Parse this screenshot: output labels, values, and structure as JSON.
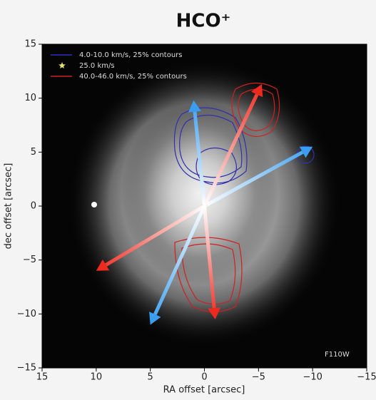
{
  "chart_data": {
    "type": "scatter",
    "title": "HCO⁺",
    "xlabel": "RA offset [arcsec]",
    "ylabel": "dec offset [arcsec]",
    "xlim": [
      15,
      -15
    ],
    "ylim": [
      -15,
      15
    ],
    "xticks": [
      15,
      10,
      5,
      0,
      {
        "value": -5,
        "label": "−5"
      },
      {
        "value": -10,
        "label": "−10"
      },
      {
        "value": -15,
        "label": "−15"
      }
    ],
    "yticks": [
      {
        "value": -15,
        "label": "−15"
      },
      {
        "value": -10,
        "label": "−10"
      },
      {
        "value": -5,
        "label": "−5"
      },
      0,
      5,
      10,
      15
    ],
    "series": [
      {
        "name": "4.0-10.0 km/s, 25% contours",
        "color": "#3a9ef0",
        "x": [
          -10,
          1,
          5
        ],
        "y": [
          5.5,
          9.8,
          -11
        ]
      },
      {
        "name": "25.0 km/s",
        "color": "#e8e070",
        "x": [
          0
        ],
        "y": [
          0
        ]
      },
      {
        "name": "40.0-46.0 km/s, 25% contours",
        "color": "#ee2a1e",
        "x": [
          -5.3,
          10,
          -1
        ],
        "y": [
          11.3,
          -6,
          -10.5
        ]
      }
    ],
    "legend": "upper left",
    "annotation": "F110W"
  }
}
